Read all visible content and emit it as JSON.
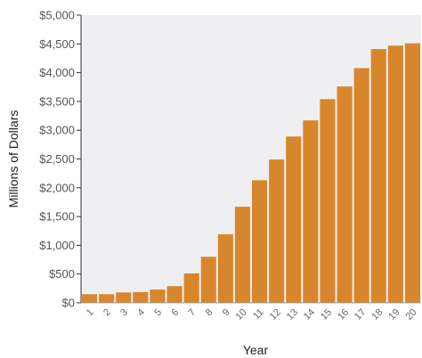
{
  "chart_data": {
    "type": "bar",
    "title": "",
    "xlabel": "Year",
    "ylabel": "Millions of Dollars",
    "categories": [
      "1",
      "2",
      "3",
      "4",
      "5",
      "6",
      "7",
      "8",
      "9",
      "10",
      "11",
      "12",
      "13",
      "14",
      "15",
      "16",
      "17",
      "18",
      "19",
      "20"
    ],
    "values": [
      150,
      150,
      180,
      185,
      230,
      290,
      510,
      800,
      1190,
      1670,
      2130,
      2490,
      2890,
      3170,
      3540,
      3760,
      4080,
      4410,
      4470,
      4510
    ],
    "ylim": [
      0,
      5000
    ],
    "yticks": [
      {
        "value": 0,
        "label": "$0"
      },
      {
        "value": 500,
        "label": "$500"
      },
      {
        "value": 1000,
        "label": "$1,000"
      },
      {
        "value": 1500,
        "label": "$1,500"
      },
      {
        "value": 2000,
        "label": "$2,000"
      },
      {
        "value": 2500,
        "label": "$2,500"
      },
      {
        "value": 3000,
        "label": "$3,000"
      },
      {
        "value": 3500,
        "label": "$3,500"
      },
      {
        "value": 4000,
        "label": "$4,000"
      },
      {
        "value": 4500,
        "label": "$4,500"
      },
      {
        "value": 5000,
        "label": "$5,000"
      }
    ],
    "grid": false,
    "colors": {
      "bar": "#D8862B",
      "plot_background": "#EFEFF2",
      "axis": "#333333"
    }
  }
}
